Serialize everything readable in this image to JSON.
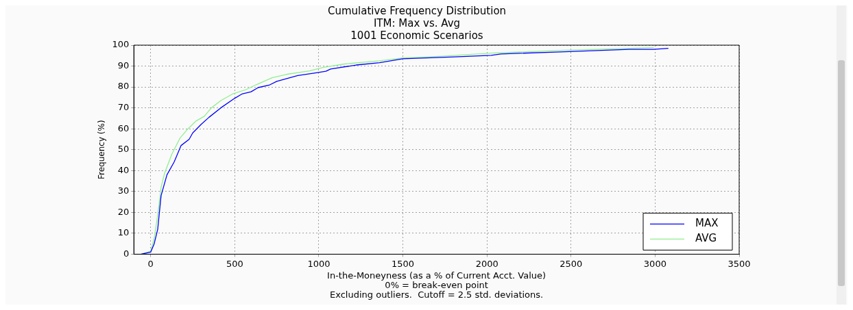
{
  "chart_data": {
    "type": "line",
    "title": "Cumulative Frequency Distribution",
    "subtitle": "ITM: Max vs. Avg\n1001 Economic Scenarios",
    "xlabel": "In-the-Moneyness (as a % of Current Acct. Value)\n0% = break-even point\nExcluding outliers.  Cutoff = 2.5 std. deviations.",
    "ylabel": "Frequency (%)",
    "xlim": [
      -100,
      3500
    ],
    "xticks": [
      0,
      500,
      1000,
      1500,
      2000,
      2500,
      3000,
      3500
    ],
    "ylim": [
      0,
      100
    ],
    "yticks": [
      0,
      10,
      20,
      30,
      40,
      50,
      60,
      70,
      80,
      90,
      100
    ],
    "grid": true,
    "legend": "bottom right",
    "marker": "none",
    "line_style": "solid",
    "series": [
      {
        "name": "MAX",
        "color": "#0000ff",
        "x": [
          -56,
          0,
          21,
          42,
          62,
          97,
          139,
          181,
          229,
          250,
          299,
          347,
          417,
          500,
          542,
          597,
          639,
          708,
          750,
          805,
          875,
          972,
          1042,
          1070,
          1222,
          1361,
          1500,
          1808,
          2025,
          2083,
          2408,
          2846,
          2990,
          3079
        ],
        "values": [
          0,
          1,
          5,
          12,
          28,
          38,
          44,
          52,
          55,
          58,
          62,
          65.5,
          70,
          74.6,
          76.6,
          77.7,
          79.7,
          81,
          82.7,
          83.9,
          85.5,
          86.6,
          87.5,
          88.6,
          90.5,
          91.6,
          93.5,
          94.4,
          95.1,
          95.8,
          96.7,
          98,
          98,
          98.5
        ]
      },
      {
        "name": "AVG",
        "color": "#90ee90",
        "x": [
          -56,
          0,
          21,
          42,
          62,
          83,
          125,
          174,
          222,
          271,
          319,
          361,
          417,
          486,
          569,
          625,
          722,
          805,
          944,
          1028,
          1153,
          1361,
          1500,
          1733,
          2025,
          2467,
          2992
        ],
        "values": [
          0,
          1.4,
          7.6,
          18.7,
          32,
          38.8,
          47.7,
          55.5,
          60,
          63.8,
          66,
          70,
          73.5,
          76.6,
          78.8,
          81,
          84.4,
          86,
          87.7,
          89.4,
          91,
          92.5,
          93.9,
          94.7,
          96.2,
          97.6,
          98.8
        ]
      }
    ]
  }
}
